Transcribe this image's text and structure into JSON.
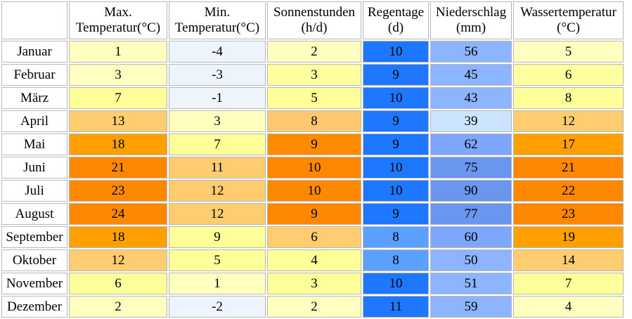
{
  "chart_data": {
    "type": "table",
    "columns": [
      {
        "line1": "Max.",
        "line2": "Temperatur(°C)"
      },
      {
        "line1": "Min.",
        "line2": "Temperatur(°C)"
      },
      {
        "line1": "Sonnenstunden",
        "line2": "(h/d)"
      },
      {
        "line1": "Regentage",
        "line2": "(d)"
      },
      {
        "line1": "Niederschlag",
        "line2": "(mm)"
      },
      {
        "line1": "Wassertemperatur",
        "line2": "(°C)"
      }
    ],
    "rows": [
      {
        "month": "Januar",
        "values": [
          "1",
          "-4",
          "2",
          "10",
          "56",
          "5"
        ]
      },
      {
        "month": "Februar",
        "values": [
          "3",
          "-3",
          "3",
          "9",
          "45",
          "6"
        ]
      },
      {
        "month": "März",
        "values": [
          "7",
          "-1",
          "5",
          "10",
          "43",
          "8"
        ]
      },
      {
        "month": "April",
        "values": [
          "13",
          "3",
          "8",
          "9",
          "39",
          "12"
        ]
      },
      {
        "month": "Mai",
        "values": [
          "18",
          "7",
          "9",
          "9",
          "62",
          "17"
        ]
      },
      {
        "month": "Juni",
        "values": [
          "21",
          "11",
          "10",
          "10",
          "75",
          "21"
        ]
      },
      {
        "month": "Juli",
        "values": [
          "23",
          "12",
          "10",
          "10",
          "90",
          "22"
        ]
      },
      {
        "month": "August",
        "values": [
          "24",
          "12",
          "9",
          "9",
          "77",
          "23"
        ]
      },
      {
        "month": "September",
        "values": [
          "18",
          "9",
          "6",
          "8",
          "60",
          "19"
        ]
      },
      {
        "month": "Oktober",
        "values": [
          "12",
          "5",
          "4",
          "8",
          "50",
          "14"
        ]
      },
      {
        "month": "November",
        "values": [
          "6",
          "1",
          "3",
          "10",
          "51",
          "7"
        ]
      },
      {
        "month": "Dezember",
        "values": [
          "2",
          "-2",
          "2",
          "11",
          "59",
          "4"
        ]
      }
    ],
    "cell_colors": [
      [
        "#ffffc0",
        "#eef4fc",
        "#ffffc0",
        "#1e78ff",
        "#8cb4ff",
        "#ffffc0"
      ],
      [
        "#ffffc0",
        "#eef4fc",
        "#ffffa0",
        "#1e78ff",
        "#8cb4ff",
        "#ffffa0"
      ],
      [
        "#ffff99",
        "#eef4fc",
        "#ffff99",
        "#1e78ff",
        "#8cb4ff",
        "#ffff99"
      ],
      [
        "#ffcc70",
        "#ffffc0",
        "#ffc870",
        "#1e78ff",
        "#cce4ff",
        "#ffcc70"
      ],
      [
        "#ffa000",
        "#ffff99",
        "#ff8c00",
        "#1e78ff",
        "#7ea6ff",
        "#ffa000"
      ],
      [
        "#ff8800",
        "#ffcc70",
        "#ff8800",
        "#1e78ff",
        "#6a96f0",
        "#ff8800"
      ],
      [
        "#ff8800",
        "#ffcc70",
        "#ff8800",
        "#1e78ff",
        "#6a96f0",
        "#ff8800"
      ],
      [
        "#ff8800",
        "#ffcc70",
        "#ff8800",
        "#1e78ff",
        "#6a96f0",
        "#ff8800"
      ],
      [
        "#ffa000",
        "#ffff99",
        "#ffcc70",
        "#5aa0ff",
        "#7ea6ff",
        "#ffa000"
      ],
      [
        "#ffcc70",
        "#ffff99",
        "#ffff99",
        "#5aa0ff",
        "#8cb4ff",
        "#ffcc70"
      ],
      [
        "#ffff99",
        "#ffffc0",
        "#ffff99",
        "#1e78ff",
        "#8cb4ff",
        "#ffff99"
      ],
      [
        "#ffffc0",
        "#eef4fc",
        "#ffffc0",
        "#1e78ff",
        "#8cb4ff",
        "#ffffc0"
      ]
    ]
  }
}
